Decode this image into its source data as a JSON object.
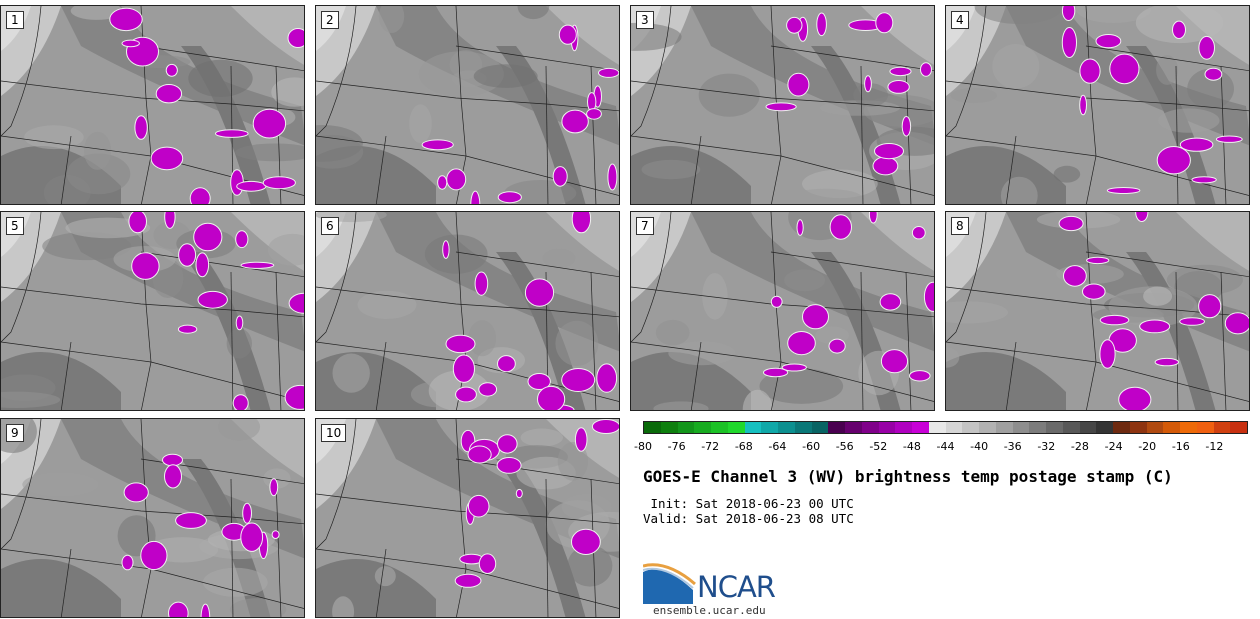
{
  "panels": [
    {
      "label": "1"
    },
    {
      "label": "2"
    },
    {
      "label": "3"
    },
    {
      "label": "4"
    },
    {
      "label": "5"
    },
    {
      "label": "6"
    },
    {
      "label": "7"
    },
    {
      "label": "8"
    },
    {
      "label": "9"
    },
    {
      "label": "10"
    }
  ],
  "colorbar": {
    "colors": [
      "#0a6a0a",
      "#0e7f0e",
      "#12951a",
      "#17ab20",
      "#1cc226",
      "#20d82c",
      "#16c0c0",
      "#10a8a8",
      "#0c9090",
      "#0a7878",
      "#086464",
      "#4a0050",
      "#66006e",
      "#80008a",
      "#9800a6",
      "#b000c0",
      "#c800d6",
      "#e8e8e8",
      "#d6d6d6",
      "#c4c4c4",
      "#b2b2b2",
      "#a0a0a0",
      "#8e8e8e",
      "#7c7c7c",
      "#6a6a6a",
      "#585858",
      "#464646",
      "#343434",
      "#6e2a10",
      "#8e3410",
      "#b04a10",
      "#d45a08",
      "#ee6a08",
      "#f06010",
      "#d04010",
      "#c83010"
    ],
    "ticks": [
      "-80",
      "-76",
      "-72",
      "-68",
      "-64",
      "-60",
      "-56",
      "-52",
      "-48",
      "-44",
      "-40",
      "-36",
      "-32",
      "-28",
      "-24",
      "-20",
      "-16",
      "-12"
    ]
  },
  "title": "GOES-E Channel 3 (WV) brightness temp postage stamp (C)",
  "init_line": " Init: Sat 2018-06-23 00 UTC",
  "valid_line": "Valid: Sat 2018-06-23 08 UTC",
  "logo": {
    "text": "NCAR",
    "url": "ensemble.ucar.edu"
  }
}
